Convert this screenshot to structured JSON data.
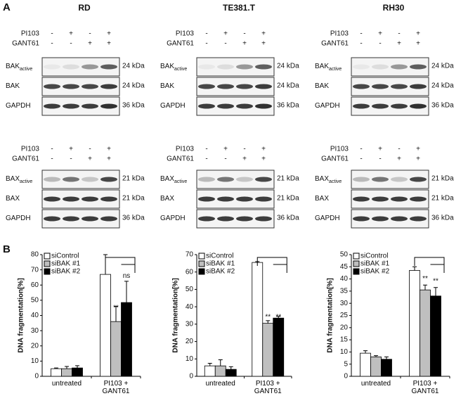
{
  "figure": {
    "panel_a": "A",
    "panel_b": "B"
  },
  "blots": [
    {
      "title": "RD",
      "sections": [
        {
          "treatments": [
            {
              "name": "PI103",
              "signs": [
                "-",
                "+",
                "-",
                "+"
              ]
            },
            {
              "name": "GANT61",
              "signs": [
                "-",
                "-",
                "+",
                "+"
              ]
            }
          ],
          "rows": [
            {
              "label": "BAK",
              "subscript": "active",
              "kda": "24 kDa"
            },
            {
              "label": "BAK",
              "kda": "24 kDa"
            },
            {
              "label": "GAPDH",
              "kda": "36 kDa"
            }
          ]
        },
        {
          "treatments": [
            {
              "name": "PI103",
              "signs": [
                "-",
                "+",
                "-",
                "+"
              ]
            },
            {
              "name": "GANT61",
              "signs": [
                "-",
                "-",
                "+",
                "+"
              ]
            }
          ],
          "rows": [
            {
              "label": "BAX",
              "subscript": "active",
              "kda": "21 kDa"
            },
            {
              "label": "BAX",
              "kda": "21 kDa"
            },
            {
              "label": "GAPDH",
              "kda": "36 kDa"
            }
          ]
        }
      ]
    },
    {
      "title": "TE381.T",
      "sections": [
        {
          "treatments": [
            {
              "name": "PI103",
              "signs": [
                "-",
                "+",
                "-",
                "+"
              ]
            },
            {
              "name": "GANT61",
              "signs": [
                "-",
                "-",
                "+",
                "+"
              ]
            }
          ],
          "rows": [
            {
              "label": "BAK",
              "subscript": "active",
              "kda": "24 kDa"
            },
            {
              "label": "BAK",
              "kda": "24 kDa"
            },
            {
              "label": "GAPDH",
              "kda": "36 kDa"
            }
          ]
        },
        {
          "treatments": [
            {
              "name": "PI103",
              "signs": [
                "-",
                "+",
                "-",
                "+"
              ]
            },
            {
              "name": "GANT61",
              "signs": [
                "-",
                "-",
                "+",
                "+"
              ]
            }
          ],
          "rows": [
            {
              "label": "BAX",
              "subscript": "active",
              "kda": "21 kDa"
            },
            {
              "label": "BAX",
              "kda": "21 kDa"
            },
            {
              "label": "GAPDH",
              "kda": "36 kDa"
            }
          ]
        }
      ]
    },
    {
      "title": "RH30",
      "sections": [
        {
          "treatments": [
            {
              "name": "PI103",
              "signs": [
                "-",
                "+",
                "-",
                "+"
              ]
            },
            {
              "name": "GANT61",
              "signs": [
                "-",
                "-",
                "+",
                "+"
              ]
            }
          ],
          "rows": [
            {
              "label": "BAK",
              "subscript": "active",
              "kda": "24 kDa"
            },
            {
              "label": "BAK",
              "kda": "24 kDa"
            },
            {
              "label": "GAPDH",
              "kda": "36 kDa"
            }
          ]
        },
        {
          "treatments": [
            {
              "name": "PI103",
              "signs": [
                "-",
                "+",
                "-",
                "+"
              ]
            },
            {
              "name": "GANT61",
              "signs": [
                "-",
                "-",
                "+",
                "+"
              ]
            }
          ],
          "rows": [
            {
              "label": "BAX",
              "subscript": "active",
              "kda": "21 kDa"
            },
            {
              "label": "BAX",
              "kda": "21 kDa"
            },
            {
              "label": "GAPDH",
              "kda": "36 kDa"
            }
          ]
        }
      ]
    }
  ],
  "chart_data": [
    {
      "type": "bar",
      "ylabel": "DNA fragmentation[%]",
      "categories": [
        "untreated",
        "PI103 + GANT61"
      ],
      "series": [
        {
          "name": "siControl",
          "color": "#ffffff",
          "values": [
            5,
            67
          ],
          "errors": [
            0.5,
            13
          ]
        },
        {
          "name": "siBAK #1",
          "color": "#bfbfbf",
          "values": [
            5,
            36
          ],
          "errors": [
            1.5,
            10
          ]
        },
        {
          "name": "siBAK #2",
          "color": "#000000",
          "values": [
            5.5,
            48.5
          ],
          "errors": [
            1.5,
            14
          ]
        }
      ],
      "ylim": [
        0,
        80
      ],
      "yticks": [
        0,
        10,
        20,
        30,
        40,
        50,
        60,
        70,
        80
      ],
      "annotations": [
        "**",
        "ns"
      ]
    },
    {
      "type": "bar",
      "ylabel": "DNA fragmentation[%]",
      "categories": [
        "untreated",
        "PI103 + GANT61"
      ],
      "series": [
        {
          "name": "siControl",
          "color": "#ffffff",
          "values": [
            6,
            65.5
          ],
          "errors": [
            1.5,
            0.5
          ]
        },
        {
          "name": "siBAK #1",
          "color": "#bfbfbf",
          "values": [
            6,
            30.5
          ],
          "errors": [
            3.5,
            1.5
          ]
        },
        {
          "name": "siBAK #2",
          "color": "#000000",
          "values": [
            4,
            33.5
          ],
          "errors": [
            1.5,
            1
          ]
        }
      ],
      "ylim": [
        0,
        70
      ],
      "yticks": [
        0,
        10,
        20,
        30,
        40,
        50,
        60,
        70
      ],
      "annotations": [
        "**",
        "**"
      ]
    },
    {
      "type": "bar",
      "ylabel": "DNA fragmentation[%]",
      "categories": [
        "untreated",
        "PI103 + GANT61"
      ],
      "series": [
        {
          "name": "siControl",
          "color": "#ffffff",
          "values": [
            9.5,
            43.5
          ],
          "errors": [
            1,
            1.5
          ]
        },
        {
          "name": "siBAK #1",
          "color": "#bfbfbf",
          "values": [
            8,
            35.5
          ],
          "errors": [
            0.5,
            2
          ]
        },
        {
          "name": "siBAK #2",
          "color": "#000000",
          "values": [
            7,
            33
          ],
          "errors": [
            1,
            3.5
          ]
        }
      ],
      "ylim": [
        0,
        50
      ],
      "yticks": [
        0,
        5,
        10,
        15,
        20,
        25,
        30,
        35,
        40,
        45,
        50
      ],
      "annotations": [
        "**",
        "**"
      ]
    }
  ]
}
